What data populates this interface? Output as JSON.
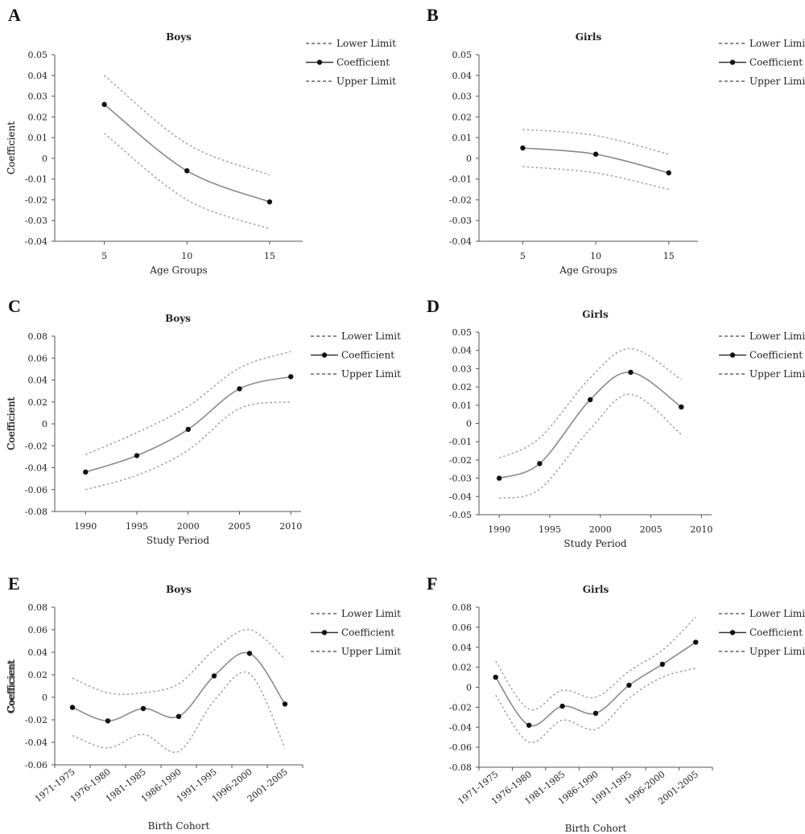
{
  "legend": {
    "lower": "Lower Limit",
    "coef": "Coefficient",
    "upper": "Upper Limit"
  },
  "colors": {
    "coefficient": "#8a8a8a",
    "limits": "#9a9a9a",
    "points": "#111111"
  },
  "chart_data": [
    {
      "panel": "A",
      "type": "line",
      "title": "Boys",
      "xlabel": "Age Groups",
      "ylabel": "Coefficient",
      "x_kind": "numeric",
      "xlim": [
        2,
        17
      ],
      "x": [
        5,
        10,
        15
      ],
      "x_ticks": [
        "5",
        "10",
        "15"
      ],
      "ylim": [
        -0.04,
        0.05
      ],
      "y_ticks": [
        "0.05",
        "0.04",
        "0.03",
        "0.02",
        "0.01",
        "0",
        "-0.01",
        "-0.02",
        "-0.03",
        "-0.04"
      ],
      "series": [
        {
          "name": "Lower Limit",
          "values": [
            0.012,
            -0.02,
            -0.034
          ]
        },
        {
          "name": "Coefficient",
          "values": [
            0.026,
            -0.006,
            -0.021
          ]
        },
        {
          "name": "Upper Limit",
          "values": [
            0.04,
            0.007,
            -0.008
          ]
        }
      ],
      "grid": false,
      "legend_position": "right"
    },
    {
      "panel": "B",
      "type": "line",
      "title": "Girls",
      "xlabel": "Age Groups",
      "ylabel": "Coefficient",
      "x_kind": "numeric",
      "xlim": [
        2,
        17
      ],
      "x": [
        5,
        10,
        15
      ],
      "x_ticks": [
        "5",
        "10",
        "15"
      ],
      "ylim": [
        -0.04,
        0.05
      ],
      "y_ticks": [
        "0.05",
        "0.04",
        "0.03",
        "0.02",
        "0.01",
        "0",
        "-0.01",
        "-0.02",
        "-0.03",
        "-0.04"
      ],
      "series": [
        {
          "name": "Lower Limit",
          "values": [
            -0.004,
            -0.007,
            -0.015
          ]
        },
        {
          "name": "Coefficient",
          "values": [
            0.005,
            0.002,
            -0.007
          ]
        },
        {
          "name": "Upper Limit",
          "values": [
            0.014,
            0.011,
            0.002
          ]
        }
      ],
      "grid": false,
      "legend_position": "right"
    },
    {
      "panel": "C",
      "type": "line",
      "title": "Boys",
      "xlabel": "Study Period",
      "ylabel": "Coefficient",
      "x_kind": "numeric",
      "xlim": [
        1987,
        2011
      ],
      "x": [
        1990,
        1995,
        2000,
        2005,
        2010
      ],
      "x_tick_values": [
        1990,
        1995,
        2000,
        2005,
        2010
      ],
      "x_ticks": [
        "1990",
        "1995",
        "2000",
        "2005",
        "2010"
      ],
      "ylim": [
        -0.08,
        0.08
      ],
      "y_ticks": [
        "0.08",
        "0.06",
        "0.04",
        "0.02",
        "0",
        "-0.02",
        "-0.04",
        "-0.06",
        "-0.08"
      ],
      "series": [
        {
          "name": "Lower Limit",
          "values": [
            -0.06,
            -0.047,
            -0.024,
            0.014,
            0.02
          ]
        },
        {
          "name": "Coefficient",
          "values": [
            -0.044,
            -0.029,
            -0.005,
            0.032,
            0.043
          ]
        },
        {
          "name": "Upper Limit",
          "values": [
            -0.028,
            -0.008,
            0.016,
            0.051,
            0.066
          ]
        }
      ],
      "grid": false,
      "legend_position": "right"
    },
    {
      "panel": "D",
      "type": "line",
      "title": "Girls",
      "xlabel": "Study Period",
      "ylabel": "Coefficient",
      "x_kind": "numeric",
      "xlim": [
        1988,
        2011
      ],
      "x": [
        1990,
        1994,
        1999,
        2003,
        2008
      ],
      "x_tick_values": [
        1990,
        1995,
        2000,
        2005,
        2010
      ],
      "x_ticks": [
        "1990",
        "1995",
        "2000",
        "2005",
        "2010"
      ],
      "ylim": [
        -0.05,
        0.05
      ],
      "y_ticks": [
        "0.05",
        "0.04",
        "0.03",
        "0.02",
        "0.01",
        "0",
        "-0.01",
        "-0.02",
        "-0.03",
        "-0.04",
        "-0.05"
      ],
      "series": [
        {
          "name": "Lower Limit",
          "values": [
            -0.041,
            -0.036,
            -0.003,
            0.016,
            -0.006
          ]
        },
        {
          "name": "Coefficient",
          "values": [
            -0.03,
            -0.022,
            0.013,
            0.028,
            0.009
          ]
        },
        {
          "name": "Upper Limit",
          "values": [
            -0.019,
            -0.008,
            0.025,
            0.041,
            0.024
          ]
        }
      ],
      "grid": false,
      "legend_position": "right"
    },
    {
      "panel": "E",
      "type": "line",
      "title": "Boys",
      "xlabel": "Birth Cohort",
      "ylabel": "Coefficient",
      "x_kind": "category",
      "x_ticks": [
        "1971-1975",
        "1976-1980",
        "1981-1985",
        "1986-1990",
        "1991-1995",
        "1996-2000",
        "2001-2005"
      ],
      "ylim": [
        -0.06,
        0.08
      ],
      "y_ticks": [
        "0.08",
        "0.06",
        "0.04",
        "0.02",
        "0",
        "-0.02",
        "-0.04",
        "-0.06"
      ],
      "series": [
        {
          "name": "Lower Limit",
          "values": [
            -0.034,
            -0.045,
            -0.033,
            -0.048,
            -0.003,
            0.021,
            -0.045
          ]
        },
        {
          "name": "Coefficient",
          "values": [
            -0.009,
            -0.021,
            -0.01,
            -0.017,
            0.019,
            0.039,
            -0.006
          ]
        },
        {
          "name": "Upper Limit",
          "values": [
            0.017,
            0.004,
            0.004,
            0.012,
            0.042,
            0.06,
            0.034
          ]
        }
      ],
      "grid": false,
      "legend_position": "right"
    },
    {
      "panel": "F",
      "type": "line",
      "title": "Girls",
      "xlabel": "Birth Cohort",
      "ylabel": "Coefficient",
      "x_kind": "category",
      "x_ticks": [
        "1971-1975",
        "1976-1980",
        "1981-1985",
        "1986-1990",
        "1991-1995",
        "1996-2000",
        "2001-2005"
      ],
      "ylim": [
        -0.08,
        0.08
      ],
      "y_ticks": [
        "0.08",
        "0.06",
        "0.04",
        "0.02",
        "0",
        "-0.02",
        "-0.04",
        "-0.06",
        "-0.08"
      ],
      "series": [
        {
          "name": "Lower Limit",
          "values": [
            -0.008,
            -0.055,
            -0.033,
            -0.042,
            -0.011,
            0.01,
            0.019
          ]
        },
        {
          "name": "Coefficient",
          "values": [
            0.01,
            -0.038,
            -0.019,
            -0.026,
            0.002,
            0.023,
            0.045
          ]
        },
        {
          "name": "Upper Limit",
          "values": [
            0.026,
            -0.022,
            -0.003,
            -0.01,
            0.016,
            0.037,
            0.07
          ]
        }
      ],
      "grid": false,
      "legend_position": "right"
    }
  ]
}
